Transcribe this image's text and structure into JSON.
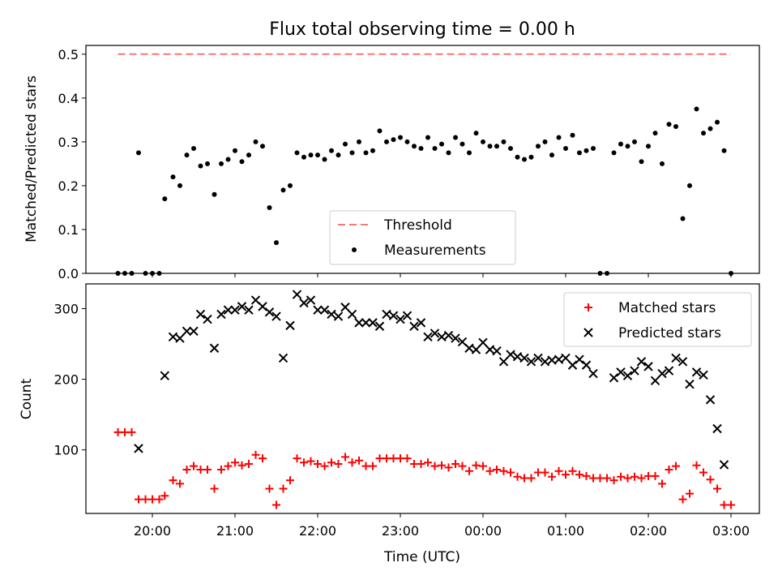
{
  "chart_data": [
    {
      "type": "scatter",
      "title": "Flux total observing time = 0.00 h",
      "xlabel": "",
      "ylabel": "Matched/Predicted stars",
      "ylim": [
        0,
        0.52
      ],
      "yticks": [
        "0.0",
        "0.1",
        "0.2",
        "0.3",
        "0.4",
        "0.5"
      ],
      "threshold": {
        "name": "Threshold",
        "value": 0.5,
        "x_range": [
          "19:35",
          "03:00"
        ],
        "color": "#f87878"
      },
      "legend": {
        "placement": "lower-center",
        "entries": [
          "Threshold",
          "Measurements"
        ]
      },
      "series": [
        {
          "name": "Measurements",
          "color": "#000000",
          "points": [
            [
              "19:35",
              0.0
            ],
            [
              "19:40",
              0.0
            ],
            [
              "19:45",
              0.0
            ],
            [
              "19:50",
              0.275
            ],
            [
              "19:55",
              0.0
            ],
            [
              "20:00",
              0.0
            ],
            [
              "20:05",
              0.0
            ],
            [
              "20:09",
              0.17
            ],
            [
              "20:15",
              0.22
            ],
            [
              "20:20",
              0.2
            ],
            [
              "20:25",
              0.27
            ],
            [
              "20:30",
              0.285
            ],
            [
              "20:35",
              0.245
            ],
            [
              "20:40",
              0.25
            ],
            [
              "20:45",
              0.18
            ],
            [
              "20:50",
              0.25
            ],
            [
              "20:55",
              0.26
            ],
            [
              "21:00",
              0.28
            ],
            [
              "21:05",
              0.255
            ],
            [
              "21:10",
              0.27
            ],
            [
              "21:15",
              0.3
            ],
            [
              "21:20",
              0.29
            ],
            [
              "21:25",
              0.15
            ],
            [
              "21:30",
              0.07
            ],
            [
              "21:35",
              0.19
            ],
            [
              "21:40",
              0.2
            ],
            [
              "21:45",
              0.275
            ],
            [
              "21:50",
              0.265
            ],
            [
              "21:55",
              0.27
            ],
            [
              "22:00",
              0.27
            ],
            [
              "22:05",
              0.26
            ],
            [
              "22:10",
              0.28
            ],
            [
              "22:15",
              0.27
            ],
            [
              "22:20",
              0.295
            ],
            [
              "22:25",
              0.275
            ],
            [
              "22:30",
              0.3
            ],
            [
              "22:35",
              0.275
            ],
            [
              "22:40",
              0.28
            ],
            [
              "22:45",
              0.325
            ],
            [
              "22:50",
              0.3
            ],
            [
              "22:55",
              0.305
            ],
            [
              "23:00",
              0.31
            ],
            [
              "23:05",
              0.3
            ],
            [
              "23:10",
              0.29
            ],
            [
              "23:15",
              0.285
            ],
            [
              "23:20",
              0.31
            ],
            [
              "23:25",
              0.285
            ],
            [
              "23:30",
              0.295
            ],
            [
              "23:35",
              0.275
            ],
            [
              "23:40",
              0.31
            ],
            [
              "23:45",
              0.295
            ],
            [
              "23:50",
              0.275
            ],
            [
              "23:55",
              0.32
            ],
            [
              "00:00",
              0.3
            ],
            [
              "00:05",
              0.29
            ],
            [
              "00:10",
              0.29
            ],
            [
              "00:15",
              0.3
            ],
            [
              "00:20",
              0.285
            ],
            [
              "00:25",
              0.265
            ],
            [
              "00:30",
              0.26
            ],
            [
              "00:35",
              0.265
            ],
            [
              "00:40",
              0.29
            ],
            [
              "00:45",
              0.3
            ],
            [
              "00:50",
              0.27
            ],
            [
              "00:55",
              0.31
            ],
            [
              "01:00",
              0.285
            ],
            [
              "01:05",
              0.315
            ],
            [
              "01:10",
              0.275
            ],
            [
              "01:15",
              0.28
            ],
            [
              "01:20",
              0.285
            ],
            [
              "01:25",
              0.0
            ],
            [
              "01:30",
              0.0
            ],
            [
              "01:35",
              0.275
            ],
            [
              "01:40",
              0.295
            ],
            [
              "01:45",
              0.29
            ],
            [
              "01:50",
              0.3
            ],
            [
              "01:55",
              0.255
            ],
            [
              "02:00",
              0.29
            ],
            [
              "02:05",
              0.32
            ],
            [
              "02:10",
              0.25
            ],
            [
              "02:15",
              0.34
            ],
            [
              "02:20",
              0.335
            ],
            [
              "02:25",
              0.125
            ],
            [
              "02:30",
              0.2
            ],
            [
              "02:35",
              0.375
            ],
            [
              "02:40",
              0.32
            ],
            [
              "02:45",
              0.33
            ],
            [
              "02:50",
              0.345
            ],
            [
              "02:55",
              0.28
            ],
            [
              "03:00",
              0.0
            ]
          ]
        }
      ]
    },
    {
      "type": "scatter",
      "title": "",
      "xlabel": "Time (UTC)",
      "ylabel": "Count",
      "ylim": [
        10,
        335
      ],
      "yticks": [
        "100",
        "200",
        "300"
      ],
      "xticks": [
        "20:00",
        "21:00",
        "22:00",
        "23:00",
        "00:00",
        "01:00",
        "02:00",
        "03:00"
      ],
      "legend": {
        "placement": "upper-right",
        "entries": [
          "Matched stars",
          "Predicted stars"
        ]
      },
      "series": [
        {
          "name": "Matched stars",
          "color": "#ff0000",
          "marker": "plus",
          "points": [
            [
              "19:35",
              125
            ],
            [
              "19:40",
              125
            ],
            [
              "19:45",
              125
            ],
            [
              "19:50",
              30
            ],
            [
              "19:55",
              30
            ],
            [
              "20:00",
              30
            ],
            [
              "20:05",
              30
            ],
            [
              "20:09",
              35
            ],
            [
              "20:15",
              57
            ],
            [
              "20:20",
              52
            ],
            [
              "20:25",
              72
            ],
            [
              "20:30",
              77
            ],
            [
              "20:35",
              72
            ],
            [
              "20:40",
              72
            ],
            [
              "20:45",
              45
            ],
            [
              "20:50",
              72
            ],
            [
              "20:55",
              77
            ],
            [
              "21:00",
              82
            ],
            [
              "21:05",
              78
            ],
            [
              "21:10",
              80
            ],
            [
              "21:15",
              93
            ],
            [
              "21:20",
              88
            ],
            [
              "21:25",
              45
            ],
            [
              "21:30",
              22
            ],
            [
              "21:35",
              45
            ],
            [
              "21:40",
              57
            ],
            [
              "21:45",
              88
            ],
            [
              "21:50",
              82
            ],
            [
              "21:55",
              84
            ],
            [
              "22:00",
              80
            ],
            [
              "22:05",
              77
            ],
            [
              "22:10",
              82
            ],
            [
              "22:15",
              80
            ],
            [
              "22:20",
              90
            ],
            [
              "22:25",
              82
            ],
            [
              "22:30",
              85
            ],
            [
              "22:35",
              77
            ],
            [
              "22:40",
              77
            ],
            [
              "22:45",
              88
            ],
            [
              "22:50",
              88
            ],
            [
              "22:55",
              88
            ],
            [
              "23:00",
              88
            ],
            [
              "23:05",
              88
            ],
            [
              "23:10",
              80
            ],
            [
              "23:15",
              80
            ],
            [
              "23:20",
              82
            ],
            [
              "23:25",
              77
            ],
            [
              "23:30",
              78
            ],
            [
              "23:35",
              75
            ],
            [
              "23:40",
              80
            ],
            [
              "23:45",
              77
            ],
            [
              "23:50",
              70
            ],
            [
              "23:55",
              78
            ],
            [
              "00:00",
              77
            ],
            [
              "00:05",
              70
            ],
            [
              "00:10",
              72
            ],
            [
              "00:15",
              70
            ],
            [
              "00:20",
              68
            ],
            [
              "00:25",
              62
            ],
            [
              "00:30",
              60
            ],
            [
              "00:35",
              60
            ],
            [
              "00:40",
              68
            ],
            [
              "00:45",
              68
            ],
            [
              "00:50",
              62
            ],
            [
              "00:55",
              70
            ],
            [
              "01:00",
              65
            ],
            [
              "01:05",
              70
            ],
            [
              "01:10",
              65
            ],
            [
              "01:15",
              63
            ],
            [
              "01:20",
              60
            ],
            [
              "01:25",
              60
            ],
            [
              "01:30",
              60
            ],
            [
              "01:35",
              57
            ],
            [
              "01:40",
              62
            ],
            [
              "01:45",
              60
            ],
            [
              "01:50",
              62
            ],
            [
              "01:55",
              60
            ],
            [
              "02:00",
              63
            ],
            [
              "02:05",
              63
            ],
            [
              "02:10",
              52
            ],
            [
              "02:15",
              72
            ],
            [
              "02:20",
              77
            ],
            [
              "02:25",
              30
            ],
            [
              "02:30",
              38
            ],
            [
              "02:35",
              78
            ],
            [
              "02:40",
              68
            ],
            [
              "02:45",
              58
            ],
            [
              "02:50",
              45
            ],
            [
              "02:55",
              22
            ],
            [
              "03:00",
              22
            ]
          ]
        },
        {
          "name": "Predicted stars",
          "color": "#000000",
          "marker": "x",
          "points": [
            [
              "19:50",
              102
            ],
            [
              "20:09",
              205
            ],
            [
              "20:15",
              260
            ],
            [
              "20:20",
              258
            ],
            [
              "20:25",
              268
            ],
            [
              "20:30",
              268
            ],
            [
              "20:35",
              292
            ],
            [
              "20:40",
              285
            ],
            [
              "20:45",
              244
            ],
            [
              "20:50",
              292
            ],
            [
              "20:55",
              298
            ],
            [
              "21:00",
              298
            ],
            [
              "21:05",
              303
            ],
            [
              "21:10",
              298
            ],
            [
              "21:15",
              312
            ],
            [
              "21:20",
              303
            ],
            [
              "21:25",
              295
            ],
            [
              "21:30",
              289
            ],
            [
              "21:35",
              230
            ],
            [
              "21:40",
              276
            ],
            [
              "21:45",
              320
            ],
            [
              "21:50",
              308
            ],
            [
              "21:55",
              312
            ],
            [
              "22:00",
              298
            ],
            [
              "22:05",
              298
            ],
            [
              "22:10",
              292
            ],
            [
              "22:15",
              289
            ],
            [
              "22:20",
              302
            ],
            [
              "22:25",
              292
            ],
            [
              "22:30",
              280
            ],
            [
              "22:35",
              280
            ],
            [
              "22:40",
              280
            ],
            [
              "22:45",
              275
            ],
            [
              "22:50",
              292
            ],
            [
              "22:55",
              290
            ],
            [
              "23:00",
              285
            ],
            [
              "23:05",
              290
            ],
            [
              "23:10",
              275
            ],
            [
              "23:15",
              280
            ],
            [
              "23:20",
              260
            ],
            [
              "23:25",
              265
            ],
            [
              "23:30",
              260
            ],
            [
              "23:35",
              262
            ],
            [
              "23:40",
              258
            ],
            [
              "23:45",
              253
            ],
            [
              "23:50",
              244
            ],
            [
              "23:55",
              242
            ],
            [
              "00:00",
              252
            ],
            [
              "00:05",
              242
            ],
            [
              "00:10",
              240
            ],
            [
              "00:15",
              225
            ],
            [
              "00:20",
              235
            ],
            [
              "00:25",
              232
            ],
            [
              "00:30",
              230
            ],
            [
              "00:35",
              225
            ],
            [
              "00:40",
              230
            ],
            [
              "00:45",
              225
            ],
            [
              "00:50",
              227
            ],
            [
              "00:55",
              228
            ],
            [
              "01:00",
              230
            ],
            [
              "01:05",
              220
            ],
            [
              "01:10",
              228
            ],
            [
              "01:15",
              220
            ],
            [
              "01:20",
              208
            ],
            [
              "01:35",
              202
            ],
            [
              "01:40",
              210
            ],
            [
              "01:45",
              205
            ],
            [
              "01:50",
              212
            ],
            [
              "01:55",
              225
            ],
            [
              "02:00",
              218
            ],
            [
              "02:05",
              198
            ],
            [
              "02:10",
              208
            ],
            [
              "02:15",
              212
            ],
            [
              "02:20",
              230
            ],
            [
              "02:25",
              225
            ],
            [
              "02:30",
              193
            ],
            [
              "02:35",
              210
            ],
            [
              "02:40",
              206
            ],
            [
              "02:45",
              171
            ],
            [
              "02:50",
              130
            ],
            [
              "02:55",
              79
            ]
          ]
        }
      ]
    }
  ]
}
